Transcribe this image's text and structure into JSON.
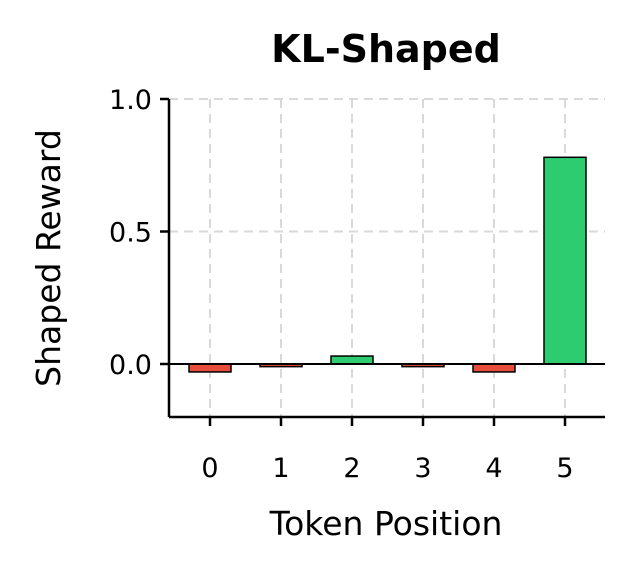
{
  "chart_data": {
    "type": "bar",
    "title": "KL-Shaped",
    "xlabel": "Token Position",
    "ylabel": "Shaped Reward",
    "categories": [
      "0",
      "1",
      "2",
      "3",
      "4",
      "5"
    ],
    "values": [
      -0.03,
      -0.01,
      0.03,
      -0.01,
      -0.03,
      0.78
    ],
    "ylim": [
      -0.2,
      1.0
    ],
    "yticks": [
      "1.0",
      "0.5",
      "0.0"
    ],
    "ytick_values": [
      1.0,
      0.5,
      0.0
    ],
    "grid": true,
    "colors": {
      "positive": "#2ecc71",
      "negative": "#e74c3c",
      "grid": "#d9d9d9",
      "zero_line": "#000000"
    }
  }
}
